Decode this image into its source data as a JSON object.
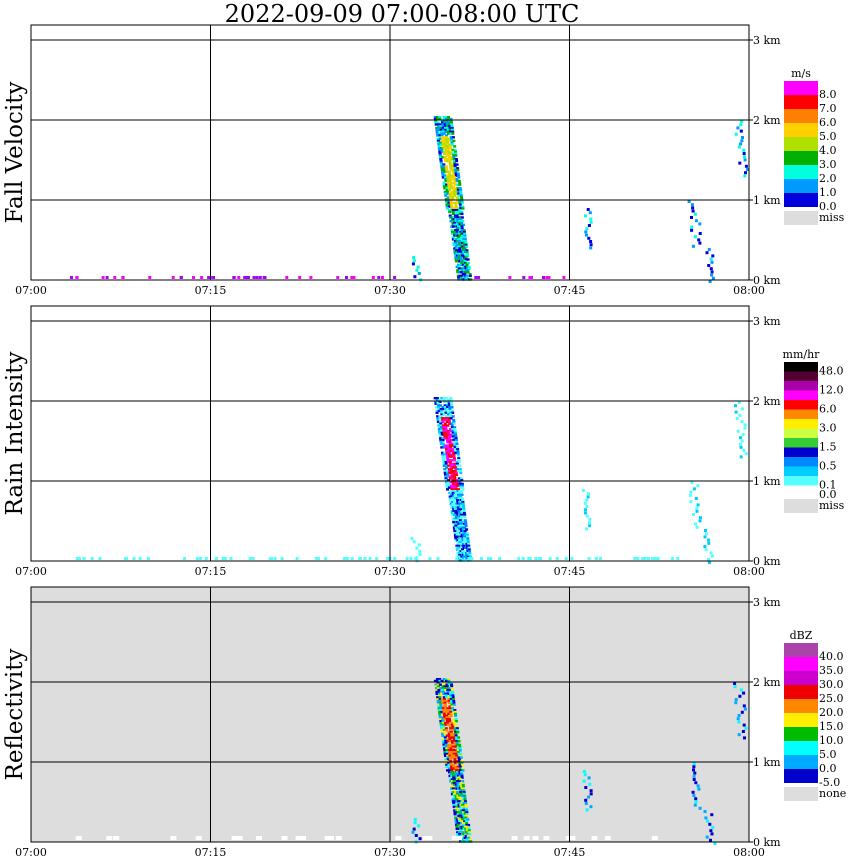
{
  "title": "2022-09-09   07:00-08:00 UTC",
  "x_ticks": [
    "07:00",
    "07:15",
    "07:30",
    "07:45",
    "08:00"
  ],
  "y_ticks": [
    "0 km",
    "1 km",
    "2 km",
    "3 km"
  ],
  "panels": [
    {
      "ylabel": "Fall Velocity",
      "legend_unit": "m/s",
      "background": "#ffffff",
      "legend": [
        {
          "label": "8.0",
          "color": "#ff00ff"
        },
        {
          "label": "7.0",
          "color": "#ff0000"
        },
        {
          "label": "6.0",
          "color": "#ff8000"
        },
        {
          "label": "5.0",
          "color": "#ffd000"
        },
        {
          "label": "4.0",
          "color": "#b0e000"
        },
        {
          "label": "3.0",
          "color": "#00b000"
        },
        {
          "label": "2.0",
          "color": "#00ffdd"
        },
        {
          "label": "1.0",
          "color": "#0099ff"
        },
        {
          "label": "0.0",
          "color": "#0000dd"
        },
        {
          "label": "miss",
          "color": "#dddddd"
        }
      ]
    },
    {
      "ylabel": "Rain Intensity",
      "legend_unit": "mm/hr",
      "background": "#ffffff",
      "legend": [
        {
          "label": "48.0",
          "color": "#000000"
        },
        {
          "label": "",
          "color": "#550033"
        },
        {
          "label": "12.0",
          "color": "#aa00aa"
        },
        {
          "label": "",
          "color": "#ff00ff"
        },
        {
          "label": "6.0",
          "color": "#ff0000"
        },
        {
          "label": "",
          "color": "#ff8800"
        },
        {
          "label": "3.0",
          "color": "#ffee00"
        },
        {
          "label": "",
          "color": "#ccff44"
        },
        {
          "label": "1.5",
          "color": "#33cc33"
        },
        {
          "label": "",
          "color": "#0000cc"
        },
        {
          "label": "0.5",
          "color": "#0088ff"
        },
        {
          "label": "",
          "color": "#00ccff"
        },
        {
          "label": "0.1",
          "color": "#55ffff"
        },
        {
          "label": "0.0",
          "color": "#ffffff"
        },
        {
          "label": "miss",
          "color": "#dddddd"
        }
      ]
    },
    {
      "ylabel": "Reflectivity",
      "legend_unit": "dBZ",
      "background": "#dddddd",
      "legend": [
        {
          "label": "40.0",
          "color": "#aa44aa"
        },
        {
          "label": "35.0",
          "color": "#ff00ff"
        },
        {
          "label": "30.0",
          "color": "#cc00cc"
        },
        {
          "label": "25.0",
          "color": "#ee0000"
        },
        {
          "label": "20.0",
          "color": "#ff8800"
        },
        {
          "label": "15.0",
          "color": "#ffee00"
        },
        {
          "label": "10.0",
          "color": "#00bb00"
        },
        {
          "label": "5.0",
          "color": "#00ffff"
        },
        {
          "label": "0.0",
          "color": "#00aaff"
        },
        {
          "label": "-5.0",
          "color": "#0000cc"
        },
        {
          "label": "none",
          "color": "#dddddd"
        }
      ]
    }
  ],
  "chart_data": {
    "type": "heatmap",
    "title": "2022-09-09   07:00-08:00 UTC",
    "x_range_minutes_after_0700": [
      0,
      60
    ],
    "y_range_km": [
      0,
      3.2
    ],
    "grid": true,
    "echo_features": [
      {
        "name": "main rain shaft",
        "t_start": 33.5,
        "t_end": 36.5,
        "top_km": 2.05,
        "bottom_km": 0.0
      },
      {
        "name": "early fringe",
        "t_start": 31.5,
        "t_end": 32.5,
        "top_km": 0.3,
        "bottom_km": 0.0
      },
      {
        "name": "fallstreak 07:45",
        "t_start": 46.0,
        "t_end": 47.0,
        "top_km": 0.9,
        "bottom_km": 0.4
      },
      {
        "name": "fallstreak 07:54",
        "t_start": 54.5,
        "t_end": 55.5,
        "top_km": 1.0,
        "bottom_km": 0.4
      },
      {
        "name": "low echo 07:56",
        "t_start": 55.5,
        "t_end": 57.0,
        "top_km": 0.4,
        "bottom_km": 0.0
      },
      {
        "name": "upper echo 07:59",
        "t_start": 58.5,
        "t_end": 59.5,
        "top_km": 2.0,
        "bottom_km": 1.3
      }
    ]
  }
}
